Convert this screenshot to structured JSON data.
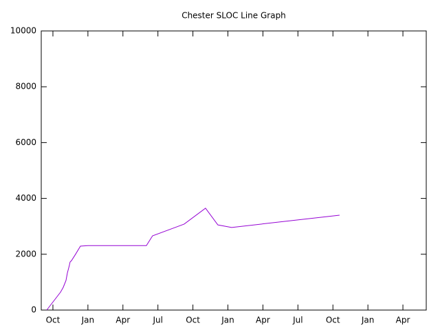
{
  "chart_data": {
    "type": "line",
    "title": "Chester SLOC Line Graph",
    "x": [
      -0.53,
      0.65,
      0.88,
      1.12,
      1.24,
      1.41,
      1.47,
      1.59,
      1.94,
      2.36,
      3.0,
      8.01,
      8.54,
      11.25,
      13.08,
      14.14,
      15.32,
      24.57
    ],
    "values": [
      0,
      640,
      810,
      1060,
      1330,
      1600,
      1720,
      1770,
      2000,
      2290,
      2310,
      2310,
      2660,
      3080,
      3650,
      3050,
      2960,
      3400
    ],
    "color": "#9400d3",
    "xlim": [
      -1,
      32
    ],
    "xticks": [
      {
        "value": 0,
        "label": "Oct"
      },
      {
        "value": 3,
        "label": "Jan"
      },
      {
        "value": 6,
        "label": "Apr"
      },
      {
        "value": 9,
        "label": "Jul"
      },
      {
        "value": 12,
        "label": "Oct"
      },
      {
        "value": 15,
        "label": "Jan"
      },
      {
        "value": 18,
        "label": "Apr"
      },
      {
        "value": 21,
        "label": "Jul"
      },
      {
        "value": 24,
        "label": "Oct"
      },
      {
        "value": 27,
        "label": "Jan"
      },
      {
        "value": 30,
        "label": "Apr"
      }
    ],
    "ylim": [
      0,
      10000
    ],
    "yticks": [
      0,
      2000,
      4000,
      6000,
      8000,
      10000
    ]
  }
}
